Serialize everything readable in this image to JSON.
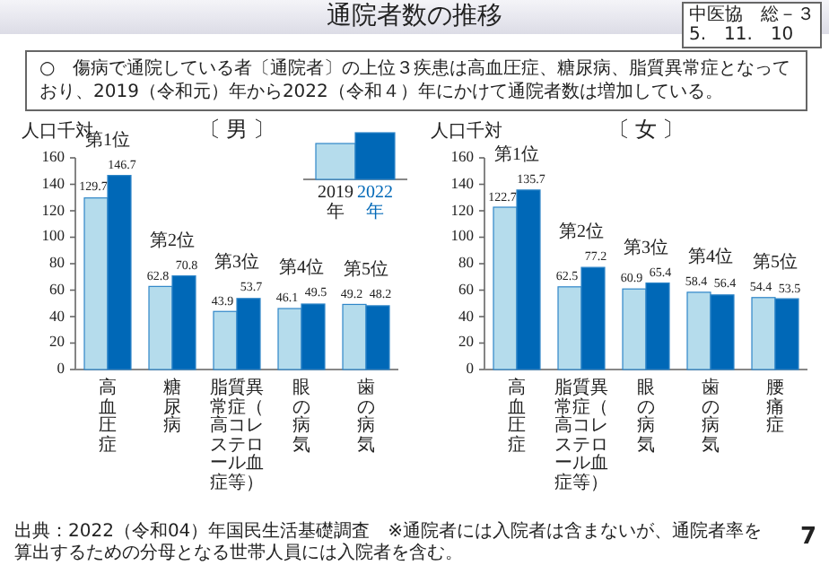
{
  "chart_data": [
    {
      "type": "other",
      "title": "通院者数の推移",
      "annotations": [
        "中医協　総－３",
        "5.　11.　10",
        "○　傷病で通院している者〔通院者〕の上位３疾患は高血圧症、糖尿病、脂質異常症となっており、2019（令和元）年から2022（令和４）年にかけて通院者数は増加している。",
        "出典：2022（令和04）年国民生活基礎調査　※通院者には入院者は含まないが、通院者率を算出するための分母となる世帯人員には入院者を含む。",
        "7"
      ]
    },
    {
      "type": "bar",
      "title": "〔 男 〕",
      "ylabel": "人口千対",
      "categories": [
        "高血圧症",
        "糖尿病",
        "脂質異常症（高コレステロール血症等）",
        "眼の病気",
        "歯の病気"
      ],
      "series": [
        {
          "name": "2019年",
          "color": "#b5dcec",
          "values": [
            129.7,
            62.8,
            43.9,
            46.1,
            49.2
          ]
        },
        {
          "name": "2022年",
          "color": "#0068b7",
          "values": [
            146.7,
            70.8,
            53.7,
            49.5,
            48.2
          ]
        }
      ],
      "ylim": [
        0,
        160
      ],
      "yticks": [
        0,
        20,
        40,
        60,
        80,
        100,
        120,
        140,
        160
      ],
      "data_labels": true,
      "legend": "top right",
      "annotations": [
        "第1位",
        "第2位",
        "第3位",
        "第4位",
        "第5位"
      ]
    },
    {
      "type": "bar",
      "title": "〔 女 〕",
      "ylabel": "人口千対",
      "categories": [
        "高血圧症",
        "脂質異常症（高コレステロール血症等）",
        "眼の病気",
        "歯の病気",
        "腰痛症"
      ],
      "series": [
        {
          "color": "#b5dcec",
          "values": [
            122.7,
            62.5,
            60.9,
            58.4,
            54.4
          ]
        },
        {
          "color": "#0068b7",
          "values": [
            135.7,
            77.2,
            65.4,
            56.4,
            53.5
          ]
        }
      ],
      "ylim": [
        0,
        160
      ],
      "yticks": [
        0,
        20,
        40,
        60,
        80,
        100,
        120,
        140,
        160
      ],
      "data_labels": true,
      "annotations": [
        "第1位",
        "第2位",
        "第3位",
        "第4位",
        "第5位"
      ]
    }
  ]
}
